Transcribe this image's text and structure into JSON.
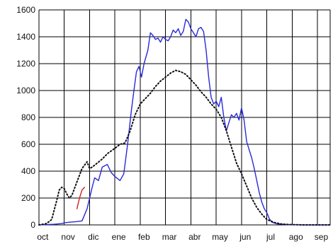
{
  "chart_data": {
    "type": "line",
    "x_categories": [
      "oct",
      "nov",
      "dic",
      "ene",
      "feb",
      "mar",
      "abr",
      "may",
      "jun",
      "jul",
      "ago",
      "sep"
    ],
    "x_range": [
      0,
      11.5
    ],
    "ylim": [
      0,
      1600
    ],
    "y_ticks": [
      0,
      200,
      400,
      600,
      800,
      1000,
      1200,
      1400,
      1600
    ],
    "grid": true,
    "legend": "none",
    "series": [
      {
        "color": "#2a2ad8",
        "style": "solid",
        "points": [
          [
            0,
            0
          ],
          [
            0.3,
            2
          ],
          [
            0.6,
            5
          ],
          [
            0.9,
            10
          ],
          [
            1.0,
            15
          ],
          [
            1.2,
            20
          ],
          [
            1.5,
            25
          ],
          [
            1.7,
            30
          ],
          [
            1.9,
            120
          ],
          [
            2.1,
            280
          ],
          [
            2.2,
            350
          ],
          [
            2.35,
            330
          ],
          [
            2.5,
            430
          ],
          [
            2.7,
            450
          ],
          [
            2.85,
            390
          ],
          [
            3.0,
            360
          ],
          [
            3.2,
            330
          ],
          [
            3.35,
            380
          ],
          [
            3.5,
            600
          ],
          [
            3.65,
            850
          ],
          [
            3.75,
            1000
          ],
          [
            3.85,
            1140
          ],
          [
            3.95,
            1180
          ],
          [
            4.05,
            1100
          ],
          [
            4.15,
            1200
          ],
          [
            4.3,
            1300
          ],
          [
            4.4,
            1430
          ],
          [
            4.5,
            1410
          ],
          [
            4.6,
            1380
          ],
          [
            4.7,
            1390
          ],
          [
            4.8,
            1360
          ],
          [
            4.9,
            1400
          ],
          [
            5.0,
            1380
          ],
          [
            5.1,
            1370
          ],
          [
            5.2,
            1400
          ],
          [
            5.3,
            1450
          ],
          [
            5.4,
            1430
          ],
          [
            5.5,
            1460
          ],
          [
            5.6,
            1410
          ],
          [
            5.7,
            1440
          ],
          [
            5.8,
            1530
          ],
          [
            5.9,
            1510
          ],
          [
            6.0,
            1460
          ],
          [
            6.1,
            1430
          ],
          [
            6.2,
            1400
          ],
          [
            6.3,
            1460
          ],
          [
            6.4,
            1470
          ],
          [
            6.5,
            1440
          ],
          [
            6.6,
            1300
          ],
          [
            6.7,
            1100
          ],
          [
            6.8,
            950
          ],
          [
            6.9,
            900
          ],
          [
            7.0,
            920
          ],
          [
            7.1,
            880
          ],
          [
            7.2,
            950
          ],
          [
            7.3,
            800
          ],
          [
            7.4,
            700
          ],
          [
            7.5,
            760
          ],
          [
            7.6,
            820
          ],
          [
            7.7,
            800
          ],
          [
            7.8,
            830
          ],
          [
            7.9,
            780
          ],
          [
            8.0,
            870
          ],
          [
            8.1,
            780
          ],
          [
            8.2,
            620
          ],
          [
            8.3,
            560
          ],
          [
            8.4,
            500
          ],
          [
            8.5,
            420
          ],
          [
            8.6,
            330
          ],
          [
            8.7,
            240
          ],
          [
            8.8,
            170
          ],
          [
            8.9,
            120
          ],
          [
            9.0,
            90
          ],
          [
            9.1,
            45
          ],
          [
            9.2,
            20
          ],
          [
            9.4,
            8
          ],
          [
            9.8,
            2
          ],
          [
            10.5,
            0
          ],
          [
            11.5,
            0
          ]
        ]
      },
      {
        "color": "#cc2222",
        "style": "solid",
        "points": [
          [
            1.5,
            120
          ],
          [
            1.6,
            200
          ],
          [
            1.7,
            260
          ],
          [
            1.8,
            280
          ]
        ]
      },
      {
        "color": "#111111",
        "style": "dotted",
        "points": [
          [
            0,
            0
          ],
          [
            0.3,
            10
          ],
          [
            0.5,
            40
          ],
          [
            0.7,
            180
          ],
          [
            0.8,
            260
          ],
          [
            0.9,
            280
          ],
          [
            1.0,
            270
          ],
          [
            1.1,
            230
          ],
          [
            1.2,
            200
          ],
          [
            1.3,
            220
          ],
          [
            1.5,
            320
          ],
          [
            1.7,
            420
          ],
          [
            1.9,
            470
          ],
          [
            2.0,
            420
          ],
          [
            2.1,
            430
          ],
          [
            2.3,
            460
          ],
          [
            2.5,
            490
          ],
          [
            2.7,
            530
          ],
          [
            3.0,
            570
          ],
          [
            3.2,
            600
          ],
          [
            3.4,
            610
          ],
          [
            3.6,
            700
          ],
          [
            3.8,
            820
          ],
          [
            4.0,
            900
          ],
          [
            4.2,
            940
          ],
          [
            4.4,
            980
          ],
          [
            4.6,
            1030
          ],
          [
            4.8,
            1070
          ],
          [
            5.0,
            1100
          ],
          [
            5.2,
            1130
          ],
          [
            5.4,
            1150
          ],
          [
            5.6,
            1140
          ],
          [
            5.8,
            1120
          ],
          [
            6.0,
            1080
          ],
          [
            6.2,
            1040
          ],
          [
            6.4,
            990
          ],
          [
            6.6,
            950
          ],
          [
            6.8,
            900
          ],
          [
            7.0,
            860
          ],
          [
            7.2,
            800
          ],
          [
            7.4,
            700
          ],
          [
            7.6,
            580
          ],
          [
            7.8,
            460
          ],
          [
            8.0,
            380
          ],
          [
            8.2,
            290
          ],
          [
            8.4,
            200
          ],
          [
            8.6,
            130
          ],
          [
            8.8,
            80
          ],
          [
            9.0,
            40
          ],
          [
            9.3,
            18
          ],
          [
            9.6,
            6
          ],
          [
            10.0,
            2
          ],
          [
            10.5,
            0
          ],
          [
            11.5,
            0
          ]
        ]
      }
    ]
  }
}
